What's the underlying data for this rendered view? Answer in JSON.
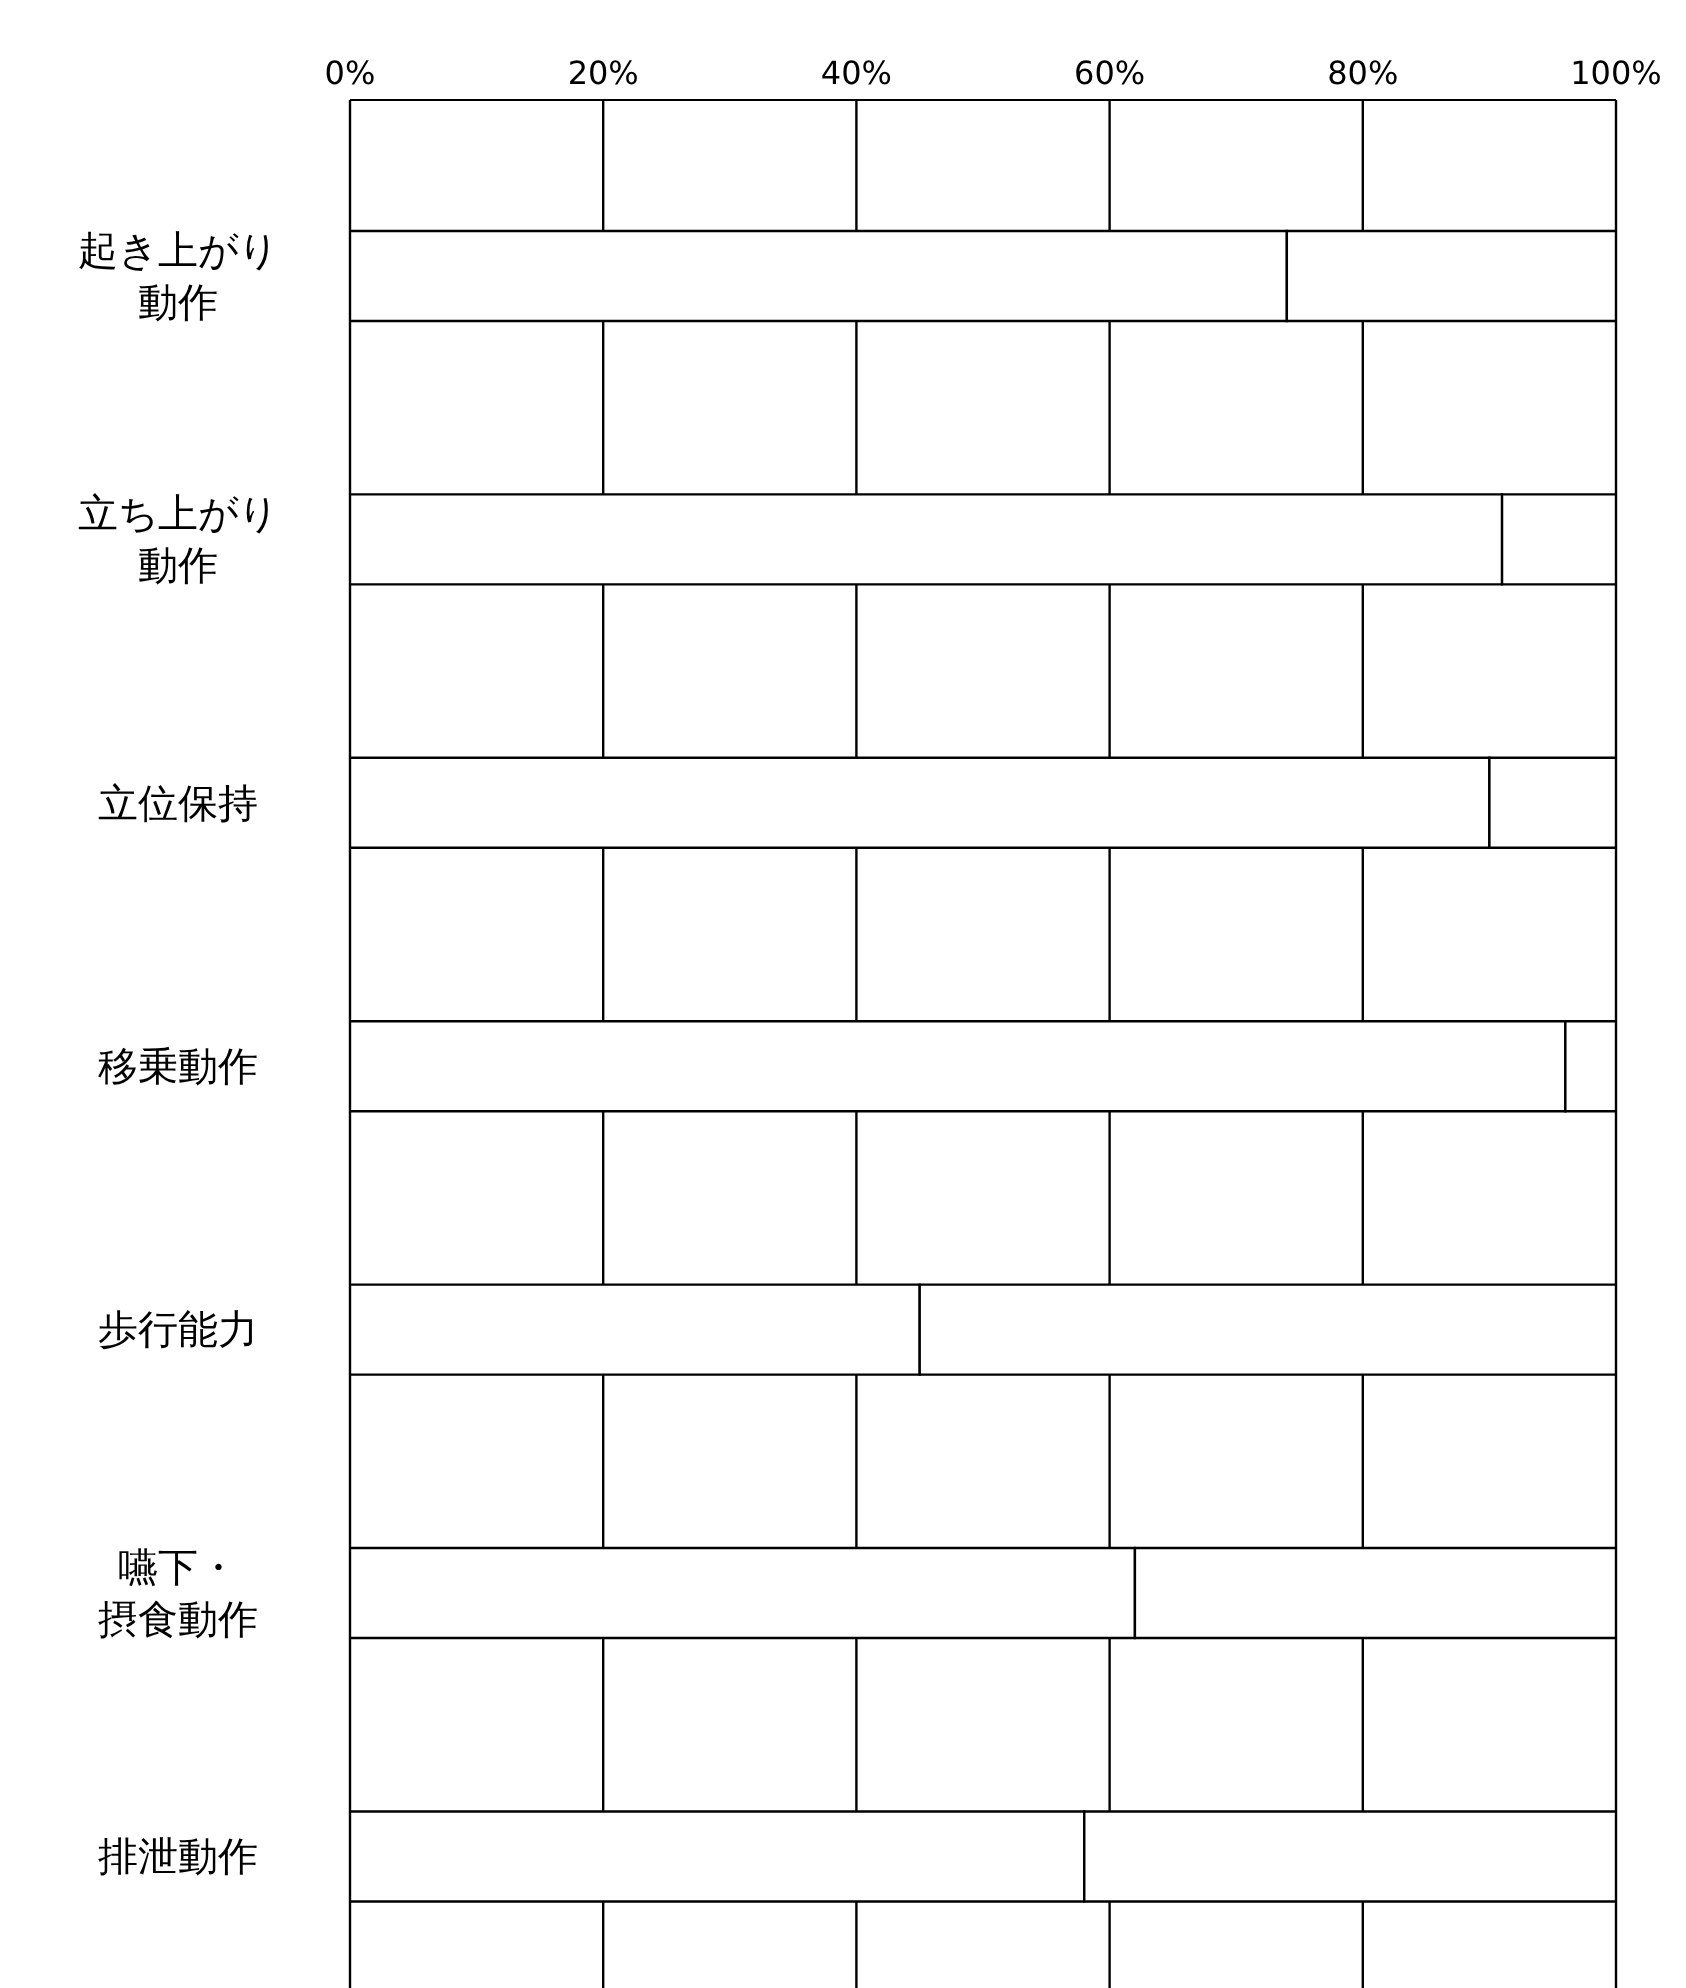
{
  "chart_data": {
    "type": "bar",
    "orientation": "horizontal",
    "stacked": true,
    "grid": "x",
    "legend": false,
    "categories": [
      "起き上がり動作",
      "立ち上がり動作",
      "立位保持",
      "移乗動作",
      "歩行能力",
      "嚥下・摂食動作",
      "排泄動作"
    ],
    "series": [
      {
        "color": "#ffffff",
        "values": [
          74,
          91,
          90,
          96,
          45,
          62,
          58
        ]
      },
      {
        "color": "#ffffff",
        "values": [
          26,
          9,
          10,
          4,
          55,
          38,
          42
        ]
      }
    ],
    "xlim": [
      0,
      100
    ],
    "xticks": [
      {
        "value": 0,
        "label": "0%"
      },
      {
        "value": 20,
        "label": "20%"
      },
      {
        "value": 40,
        "label": "40%"
      },
      {
        "value": 60,
        "label": "60%"
      },
      {
        "value": 80,
        "label": "80%"
      },
      {
        "value": 100,
        "label": "100%"
      }
    ]
  }
}
